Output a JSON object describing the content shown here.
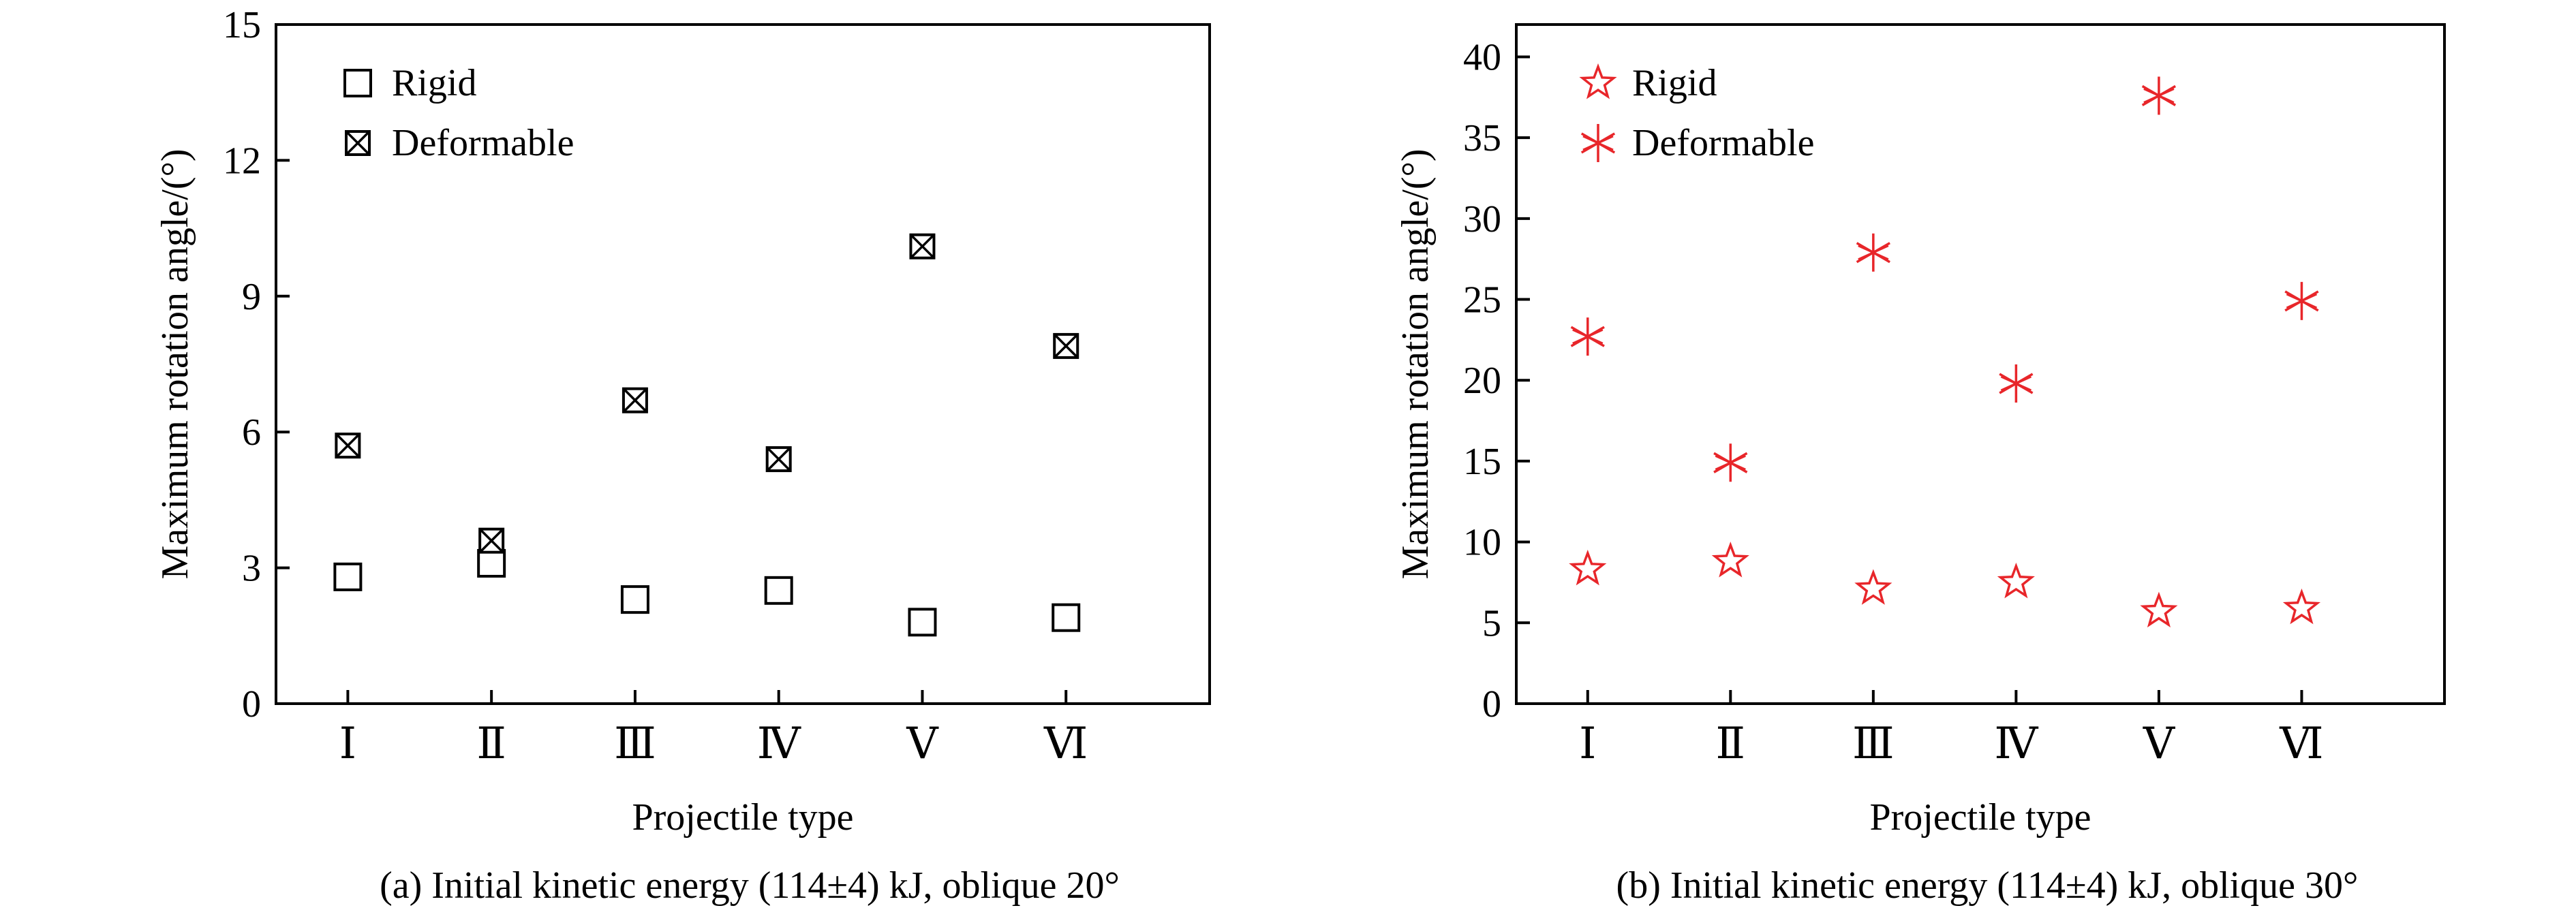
{
  "chart_data": [
    {
      "type": "scatter",
      "subtitle": "(a) Initial kinetic energy (114±4) kJ, oblique 20°",
      "xlabel": "Projectile type",
      "ylabel": "Maximum rotation angle/(°)",
      "categories": [
        "Ⅰ",
        "Ⅱ",
        "Ⅲ",
        "Ⅳ",
        "Ⅴ",
        "Ⅵ"
      ],
      "ylim": [
        0,
        15
      ],
      "yticks": [
        0,
        3,
        6,
        9,
        12,
        15
      ],
      "grid": false,
      "legend_position": "top-left",
      "color": "#000000",
      "series": [
        {
          "name": "Rigid",
          "marker": "square",
          "values": [
            2.8,
            3.1,
            2.3,
            2.5,
            1.8,
            1.9
          ]
        },
        {
          "name": "Deformable",
          "marker": "crossed-square",
          "values": [
            5.7,
            3.6,
            6.7,
            5.4,
            10.1,
            7.9
          ]
        }
      ]
    },
    {
      "type": "scatter",
      "subtitle": "(b) Initial kinetic energy (114±4) kJ, oblique 30°",
      "xlabel": "Projectile type",
      "ylabel": "Maximum rotation angle/(°)",
      "categories": [
        "Ⅰ",
        "Ⅱ",
        "Ⅲ",
        "Ⅳ",
        "Ⅴ",
        "Ⅵ"
      ],
      "ylim": [
        0,
        42
      ],
      "yticks": [
        0,
        5,
        10,
        15,
        20,
        25,
        30,
        35,
        40
      ],
      "grid": false,
      "legend_position": "top-left",
      "color": "#e8262a",
      "series": [
        {
          "name": "Rigid",
          "marker": "star",
          "values": [
            8.3,
            8.8,
            7.1,
            7.5,
            5.7,
            5.9
          ]
        },
        {
          "name": "Deformable",
          "marker": "asterisk",
          "values": [
            22.7,
            14.9,
            27.9,
            19.8,
            37.6,
            24.9
          ]
        }
      ]
    }
  ]
}
